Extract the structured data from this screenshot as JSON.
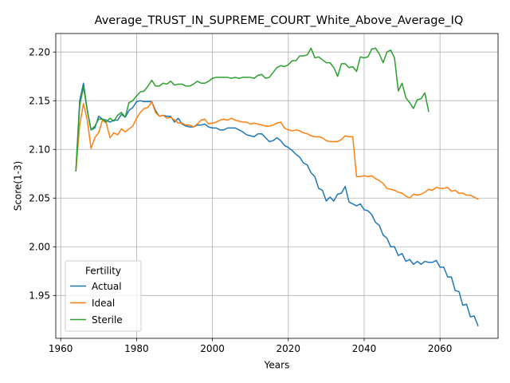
{
  "chart_data": {
    "type": "line",
    "title": "Average_TRUST_IN_SUPREME_COURT_White_Above_Average_IQ",
    "xlabel": "Years",
    "ylabel": "Score(1-3)",
    "xlim": [
      1958.7,
      2075.3
    ],
    "ylim": [
      1.906,
      2.219
    ],
    "xticks": [
      1960,
      1980,
      2000,
      2020,
      2040,
      2060
    ],
    "yticks": [
      1.95,
      2.0,
      2.05,
      2.1,
      2.15,
      2.2
    ],
    "ytick_labels": [
      "1.95",
      "2.00",
      "2.05",
      "2.10",
      "2.15",
      "2.20"
    ],
    "grid": true,
    "legend": {
      "title": "Fertility",
      "placement": "lower-left"
    },
    "series": [
      {
        "name": "Actual",
        "color": "#1f77b4",
        "x": [
          1964,
          1965,
          1966,
          1967,
          1968,
          1969,
          1970,
          1971,
          1972,
          1973,
          1974,
          1975,
          1976,
          1977,
          1978,
          1979,
          1980,
          1981,
          1982,
          1983,
          1984,
          1985,
          1986,
          1987,
          1988,
          1989,
          1990,
          1991,
          1992,
          1993,
          1994,
          1995,
          1996,
          1997,
          1998,
          1999,
          2000,
          2001,
          2002,
          2003,
          2004,
          2005,
          2006,
          2007,
          2008,
          2009,
          2010,
          2011,
          2012,
          2013,
          2014,
          2015,
          2016,
          2017,
          2018,
          2019,
          2020,
          2021,
          2022,
          2023,
          2024,
          2025,
          2026,
          2027,
          2028,
          2029,
          2030,
          2031,
          2032,
          2033,
          2034,
          2035,
          2036,
          2037,
          2038,
          2039,
          2040,
          2041,
          2042,
          2043,
          2044,
          2045,
          2046,
          2047,
          2048,
          2049,
          2050,
          2051,
          2052,
          2053,
          2054,
          2055,
          2056,
          2057,
          2058,
          2059,
          2060,
          2061,
          2062,
          2063,
          2064,
          2065,
          2066,
          2067,
          2068,
          2069,
          2070
        ],
        "y": [
          2.078,
          2.15,
          2.168,
          2.14,
          2.12,
          2.122,
          2.134,
          2.131,
          2.13,
          2.128,
          2.13,
          2.13,
          2.136,
          2.133,
          2.14,
          2.143,
          2.149,
          2.15,
          2.149,
          2.149,
          2.149,
          2.14,
          2.134,
          2.135,
          2.134,
          2.134,
          2.128,
          2.132,
          2.126,
          2.124,
          2.123,
          2.123,
          2.125,
          2.125,
          2.126,
          2.123,
          2.122,
          2.122,
          2.12,
          2.12,
          2.122,
          2.122,
          2.122,
          2.12,
          2.118,
          2.115,
          2.114,
          2.113,
          2.116,
          2.116,
          2.112,
          2.108,
          2.109,
          2.112,
          2.109,
          2.104,
          2.102,
          2.099,
          2.095,
          2.092,
          2.086,
          2.084,
          2.076,
          2.072,
          2.06,
          2.058,
          2.047,
          2.051,
          2.047,
          2.054,
          2.055,
          2.062,
          2.046,
          2.044,
          2.042,
          2.044,
          2.038,
          2.037,
          2.033,
          2.025,
          2.022,
          2.012,
          2.009,
          2.0,
          2.0,
          1.991,
          1.993,
          1.985,
          1.987,
          1.982,
          1.985,
          1.982,
          1.985,
          1.984,
          1.984,
          1.986,
          1.979,
          1.979,
          1.969,
          1.969,
          1.955,
          1.954,
          1.94,
          1.941,
          1.928,
          1.929,
          1.919
        ]
      },
      {
        "name": "Ideal",
        "color": "#ff7f0e",
        "x": [
          1964,
          1965,
          1966,
          1967,
          1968,
          1969,
          1970,
          1971,
          1972,
          1973,
          1974,
          1975,
          1976,
          1977,
          1978,
          1979,
          1980,
          1981,
          1982,
          1983,
          1984,
          1985,
          1986,
          1987,
          1988,
          1989,
          1990,
          1991,
          1992,
          1993,
          1994,
          1995,
          1996,
          1997,
          1998,
          1999,
          2000,
          2001,
          2002,
          2003,
          2004,
          2005,
          2006,
          2007,
          2008,
          2009,
          2010,
          2011,
          2012,
          2013,
          2014,
          2015,
          2016,
          2017,
          2018,
          2019,
          2020,
          2021,
          2022,
          2023,
          2024,
          2025,
          2026,
          2027,
          2028,
          2029,
          2030,
          2031,
          2032,
          2033,
          2034,
          2035,
          2036,
          2037,
          2038,
          2039,
          2040,
          2041,
          2042,
          2043,
          2044,
          2045,
          2046,
          2047,
          2048,
          2049,
          2050,
          2051,
          2052,
          2053,
          2054,
          2055,
          2056,
          2057,
          2058,
          2059,
          2060,
          2061,
          2062,
          2063,
          2064,
          2065,
          2066,
          2067,
          2068,
          2069,
          2070
        ],
        "y": [
          2.078,
          2.125,
          2.147,
          2.13,
          2.101,
          2.112,
          2.117,
          2.13,
          2.127,
          2.112,
          2.117,
          2.115,
          2.121,
          2.118,
          2.121,
          2.124,
          2.132,
          2.138,
          2.142,
          2.143,
          2.149,
          2.138,
          2.134,
          2.135,
          2.132,
          2.133,
          2.13,
          2.127,
          2.127,
          2.125,
          2.125,
          2.123,
          2.126,
          2.13,
          2.131,
          2.126,
          2.127,
          2.128,
          2.13,
          2.131,
          2.13,
          2.132,
          2.13,
          2.129,
          2.128,
          2.128,
          2.126,
          2.127,
          2.126,
          2.125,
          2.124,
          2.124,
          2.125,
          2.127,
          2.128,
          2.122,
          2.12,
          2.119,
          2.12,
          2.119,
          2.117,
          2.116,
          2.114,
          2.113,
          2.113,
          2.112,
          2.109,
          2.108,
          2.108,
          2.108,
          2.11,
          2.114,
          2.113,
          2.113,
          2.072,
          2.072,
          2.073,
          2.072,
          2.073,
          2.07,
          2.068,
          2.065,
          2.06,
          2.059,
          2.058,
          2.056,
          2.055,
          2.052,
          2.05,
          2.054,
          2.053,
          2.054,
          2.056,
          2.059,
          2.058,
          2.061,
          2.06,
          2.06,
          2.061,
          2.057,
          2.058,
          2.055,
          2.055,
          2.053,
          2.053,
          2.051,
          2.049
        ]
      },
      {
        "name": "Sterile",
        "color": "#2ca02c",
        "x": [
          1964,
          1965,
          1966,
          1967,
          1968,
          1969,
          1970,
          1971,
          1972,
          1973,
          1974,
          1975,
          1976,
          1977,
          1978,
          1979,
          1980,
          1981,
          1982,
          1983,
          1984,
          1985,
          1986,
          1987,
          1988,
          1989,
          1990,
          1991,
          1992,
          1993,
          1994,
          1995,
          1996,
          1997,
          1998,
          1999,
          2000,
          2001,
          2002,
          2003,
          2004,
          2005,
          2006,
          2007,
          2008,
          2009,
          2010,
          2011,
          2012,
          2013,
          2014,
          2015,
          2016,
          2017,
          2018,
          2019,
          2020,
          2021,
          2022,
          2023,
          2024,
          2025,
          2026,
          2027,
          2028,
          2029,
          2030,
          2031,
          2032,
          2033,
          2034,
          2035,
          2036,
          2037,
          2038,
          2039,
          2040,
          2041,
          2042,
          2043,
          2044,
          2045,
          2046,
          2047,
          2048,
          2049,
          2050,
          2051,
          2052,
          2053,
          2054,
          2055,
          2056,
          2057
        ],
        "y": [
          2.078,
          2.145,
          2.164,
          2.14,
          2.12,
          2.124,
          2.131,
          2.131,
          2.128,
          2.132,
          2.129,
          2.135,
          2.138,
          2.133,
          2.148,
          2.15,
          2.155,
          2.159,
          2.16,
          2.165,
          2.171,
          2.165,
          2.165,
          2.168,
          2.167,
          2.17,
          2.166,
          2.167,
          2.167,
          2.165,
          2.165,
          2.167,
          2.17,
          2.168,
          2.168,
          2.17,
          2.173,
          2.174,
          2.174,
          2.174,
          2.174,
          2.173,
          2.174,
          2.173,
          2.174,
          2.174,
          2.174,
          2.173,
          2.176,
          2.177,
          2.173,
          2.174,
          2.179,
          2.184,
          2.186,
          2.185,
          2.187,
          2.191,
          2.191,
          2.196,
          2.196,
          2.197,
          2.204,
          2.194,
          2.195,
          2.192,
          2.189,
          2.189,
          2.184,
          2.175,
          2.188,
          2.188,
          2.184,
          2.185,
          2.18,
          2.195,
          2.194,
          2.195,
          2.203,
          2.204,
          2.198,
          2.189,
          2.2,
          2.202,
          2.194,
          2.16,
          2.168,
          2.153,
          2.148,
          2.142,
          2.151,
          2.152,
          2.158,
          2.139
        ]
      }
    ]
  }
}
